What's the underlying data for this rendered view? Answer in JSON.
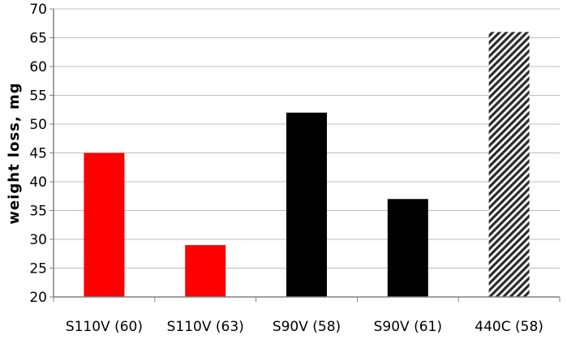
{
  "chart_data": {
    "type": "bar",
    "title": "",
    "xlabel": "",
    "ylabel": "weight loss, mg",
    "ylim": [
      20,
      70
    ],
    "yticks": [
      20,
      25,
      30,
      35,
      40,
      45,
      50,
      55,
      60,
      65,
      70
    ],
    "grid": true,
    "categories": [
      "S110V (60)",
      "S110V (63)",
      "S90V (58)",
      "S90V (61)",
      "440C (58)"
    ],
    "values": [
      45,
      29,
      52,
      37,
      66
    ],
    "bar_styles": [
      "solid",
      "solid",
      "solid",
      "solid",
      "hatched"
    ],
    "colors": [
      "#ff0000",
      "#ff0000",
      "#000000",
      "#000000",
      "#333333"
    ]
  }
}
